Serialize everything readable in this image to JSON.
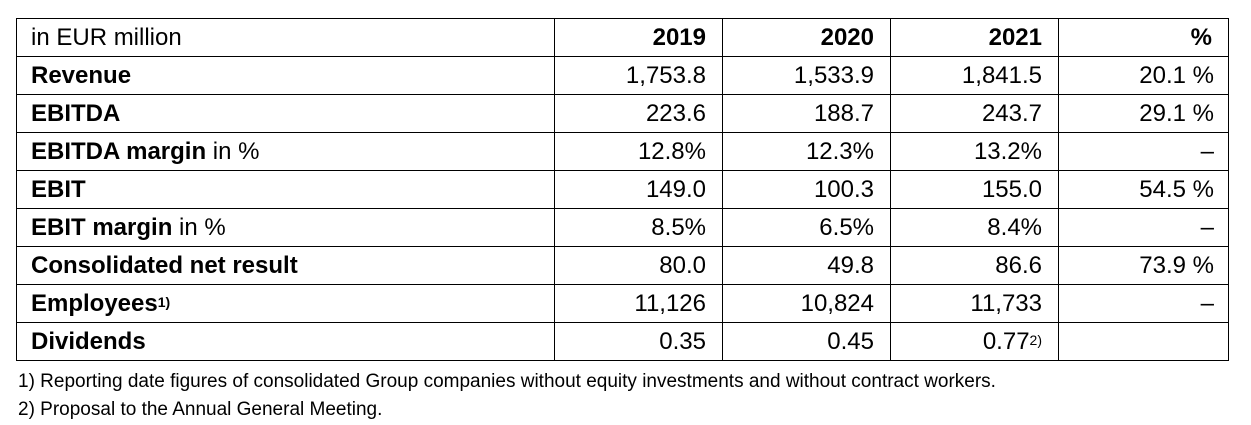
{
  "table": {
    "unit_label": "in EUR million",
    "columns": [
      "2019",
      "2020",
      "2021",
      "%"
    ],
    "rows": [
      {
        "label_bold": "Revenue",
        "label_rest": "",
        "sup": "",
        "values": [
          "1,753.8",
          "1,533.9",
          "1,841.5",
          "20.1 %"
        ],
        "value_sups": [
          "",
          "",
          "",
          ""
        ]
      },
      {
        "label_bold": "EBITDA",
        "label_rest": "",
        "sup": "",
        "values": [
          "223.6",
          "188.7",
          "243.7",
          "29.1 %"
        ],
        "value_sups": [
          "",
          "",
          "",
          ""
        ]
      },
      {
        "label_bold": "EBITDA margin",
        "label_rest": " in %",
        "sup": "",
        "values": [
          "12.8%",
          "12.3%",
          "13.2%",
          "–"
        ],
        "value_sups": [
          "",
          "",
          "",
          ""
        ]
      },
      {
        "label_bold": "EBIT",
        "label_rest": "",
        "sup": "",
        "values": [
          "149.0",
          "100.3",
          "155.0",
          "54.5 %"
        ],
        "value_sups": [
          "",
          "",
          "",
          ""
        ]
      },
      {
        "label_bold": "EBIT margin",
        "label_rest": " in %",
        "sup": "",
        "values": [
          "8.5%",
          "6.5%",
          "8.4%",
          "–"
        ],
        "value_sups": [
          "",
          "",
          "",
          ""
        ]
      },
      {
        "label_bold": "Consolidated net result",
        "label_rest": "",
        "sup": "",
        "values": [
          "80.0",
          "49.8",
          "86.6",
          "73.9 %"
        ],
        "value_sups": [
          "",
          "",
          "",
          ""
        ]
      },
      {
        "label_bold": "Employees",
        "label_rest": "",
        "sup": "1)",
        "values": [
          "11,126",
          "10,824",
          "11,733",
          "–"
        ],
        "value_sups": [
          "",
          "",
          "",
          ""
        ]
      },
      {
        "label_bold": "Dividends",
        "label_rest": "",
        "sup": "",
        "values": [
          "0.35",
          "0.45",
          "0.77",
          ""
        ],
        "value_sups": [
          "",
          "",
          "2)",
          ""
        ]
      }
    ]
  },
  "footnotes": [
    "1) Reporting date figures of consolidated Group companies without equity investments and without contract workers.",
    "2) Proposal to the Annual General Meeting."
  ]
}
